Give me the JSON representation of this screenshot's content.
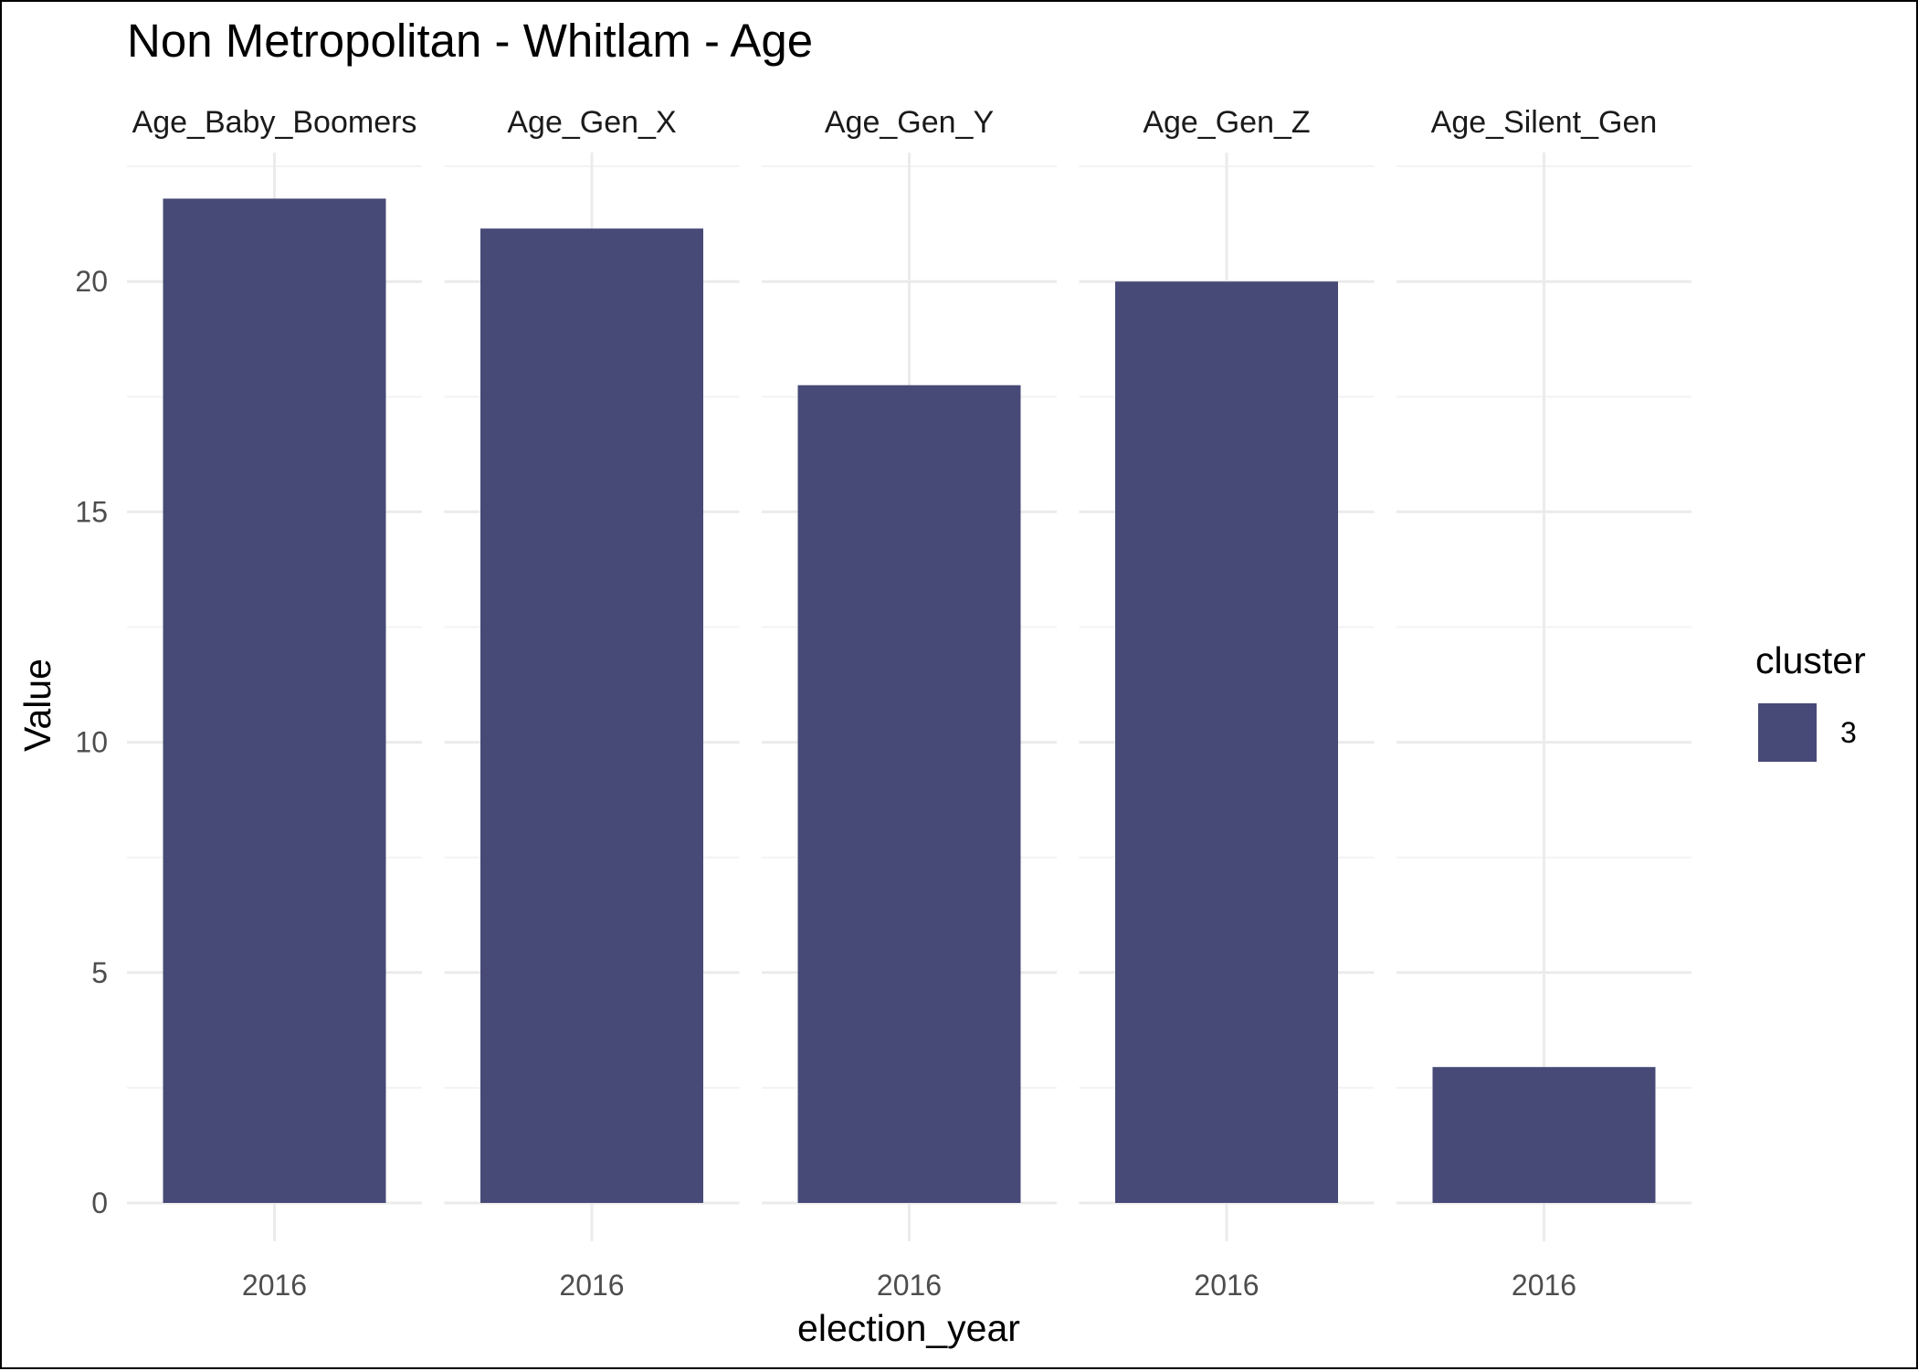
{
  "chart_data": {
    "type": "bar",
    "title": "Non Metropolitan - Whitlam - Age",
    "xlabel": "election_year",
    "ylabel": "Value",
    "ylim": [
      0,
      22.8
    ],
    "yticks": [
      0,
      5,
      10,
      15,
      20
    ],
    "grid": true,
    "legend": {
      "title": "cluster",
      "placement": "right",
      "entries": [
        {
          "label": "3",
          "color": "#474A77"
        }
      ]
    },
    "facets": [
      {
        "name": "Age_Baby_Boomers",
        "x": "2016",
        "value": 21.8
      },
      {
        "name": "Age_Gen_X",
        "x": "2016",
        "value": 21.15
      },
      {
        "name": "Age_Gen_Y",
        "x": "2016",
        "value": 17.75
      },
      {
        "name": "Age_Gen_Z",
        "x": "2016",
        "value": 20.0
      },
      {
        "name": "Age_Silent_Gen",
        "x": "2016",
        "value": 2.95
      }
    ]
  },
  "colors": {
    "bar": "#474A77",
    "grid_major": "#EBEBEB",
    "grid_minor": "#F3F3F3"
  }
}
